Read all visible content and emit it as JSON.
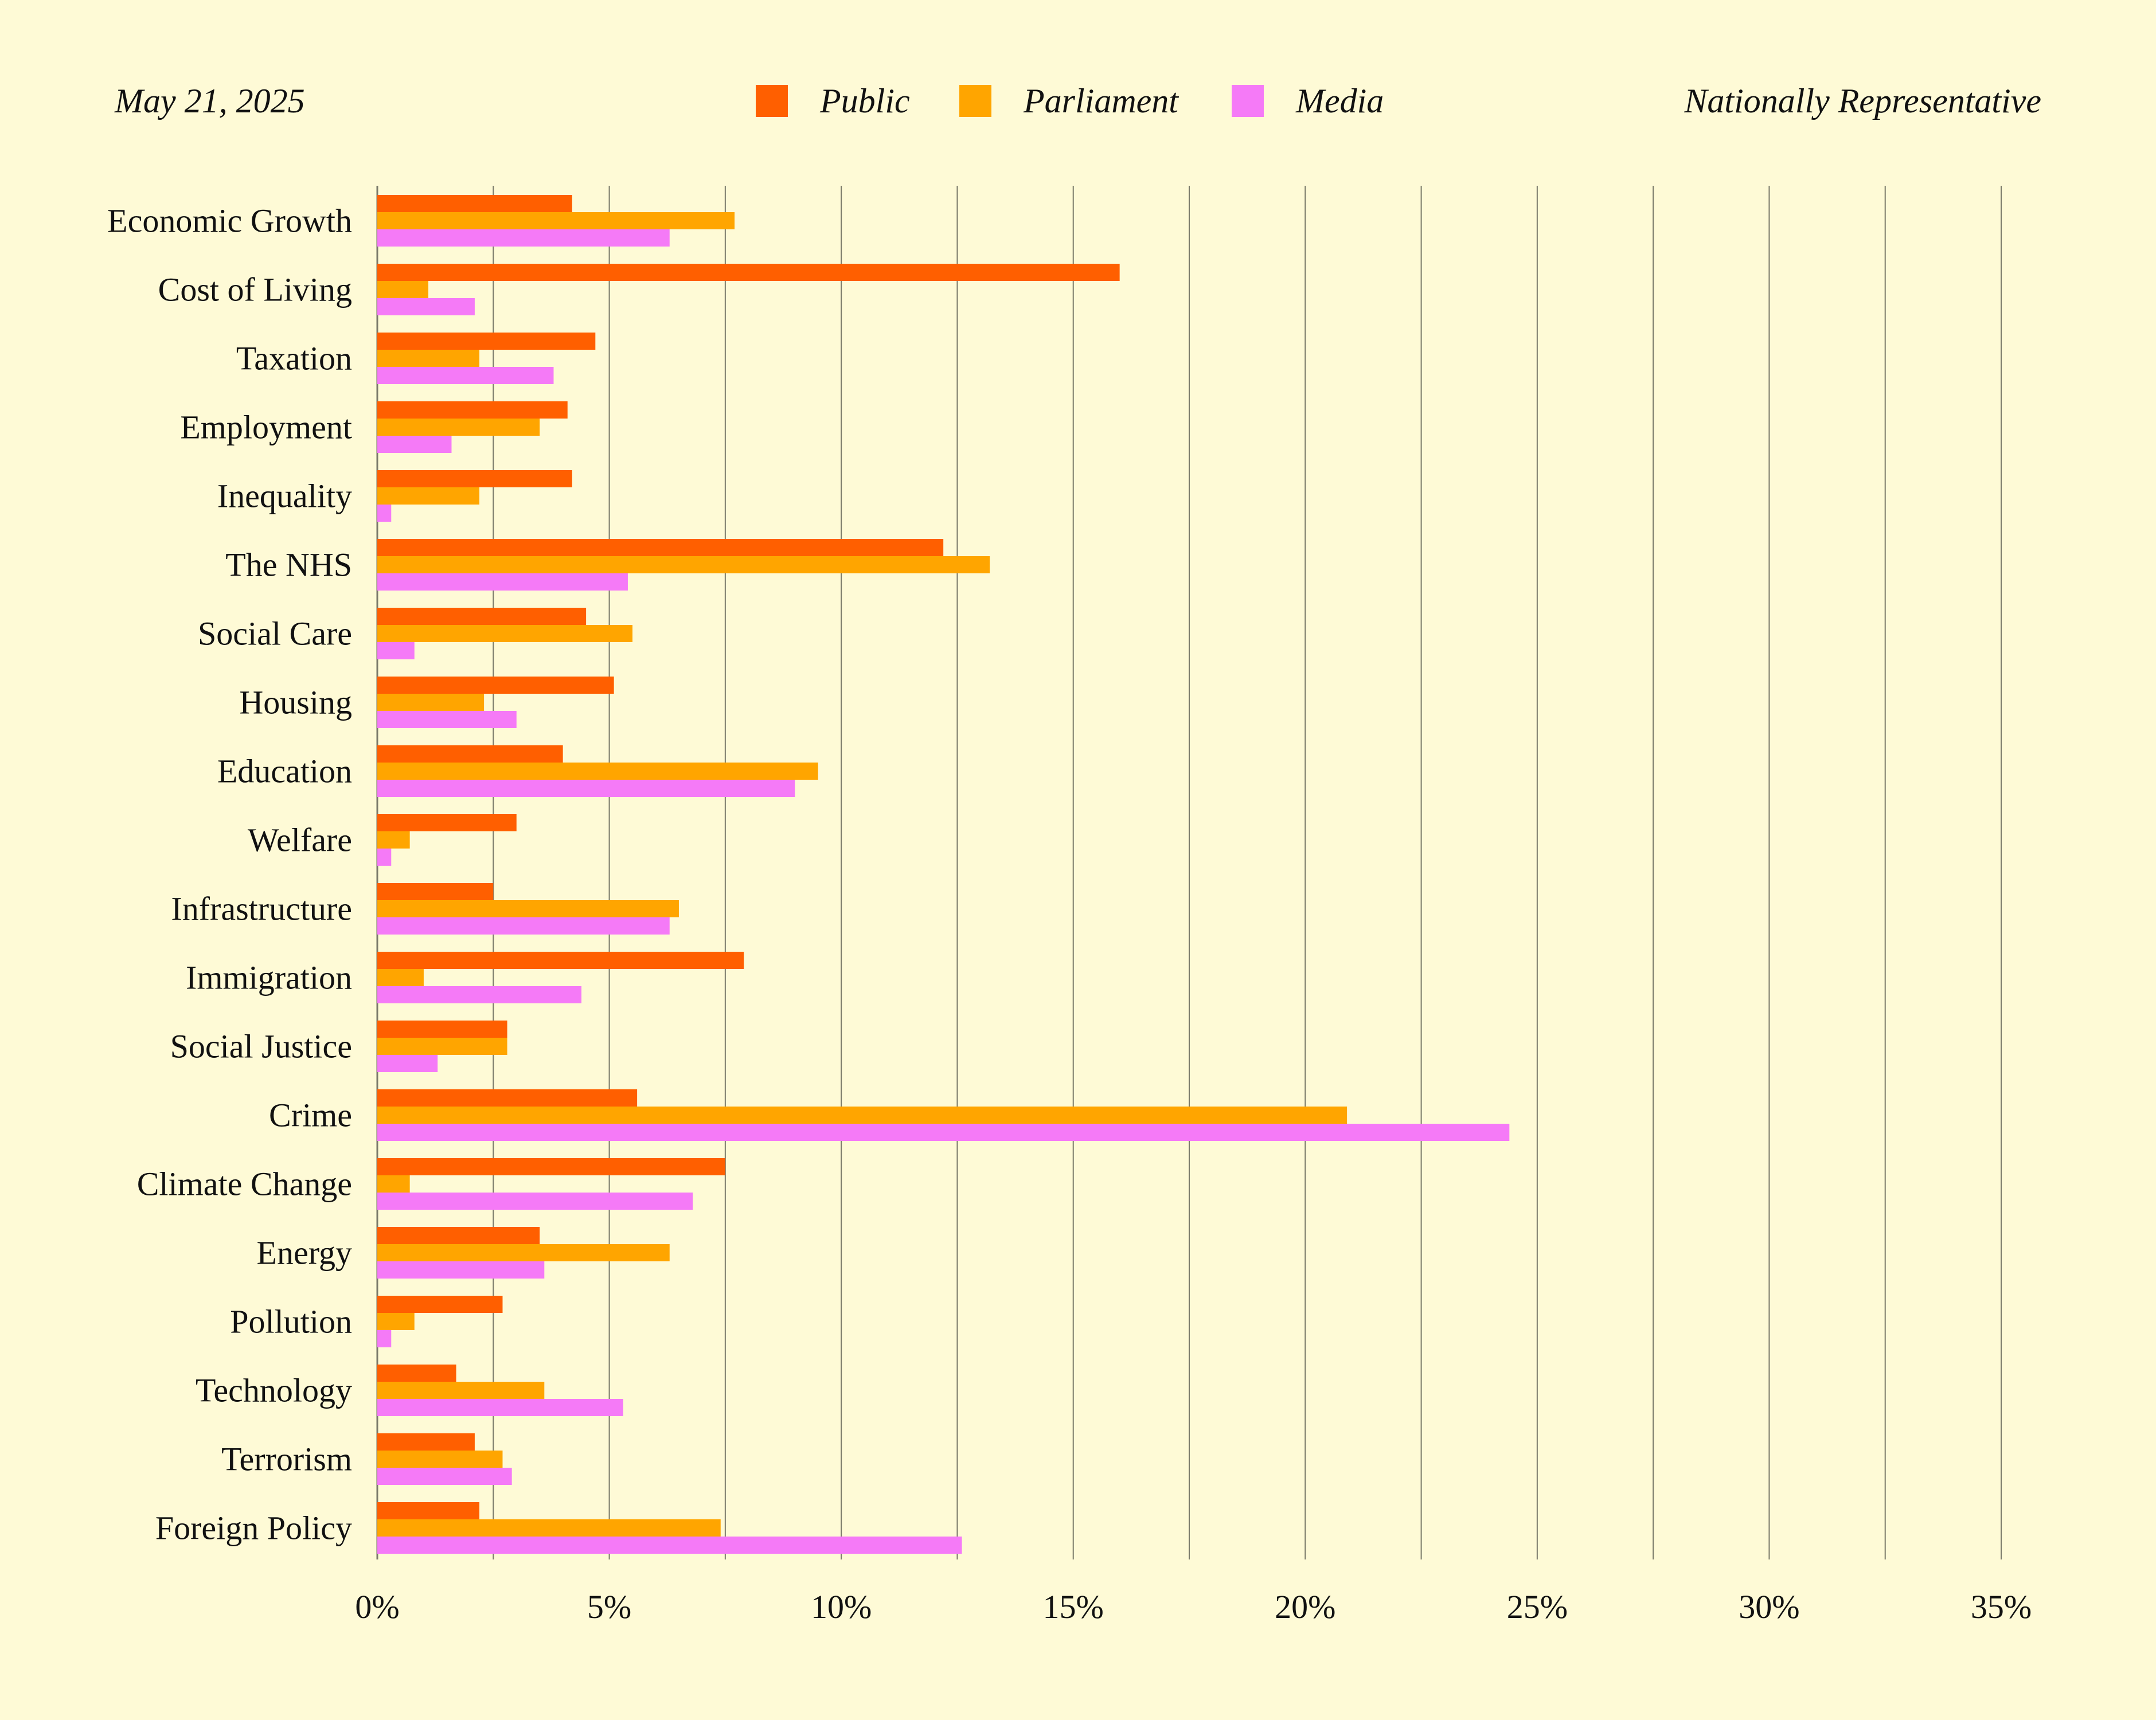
{
  "header": {
    "date": "May 21, 2025",
    "sample": "Nationally Representative"
  },
  "colors": {
    "background": "#FEFAD6",
    "public": "#FF5F00",
    "parliament": "#FFA500",
    "media": "#F57AF7",
    "grid": "#7A7A6A"
  },
  "chart_data": {
    "type": "bar",
    "orientation": "horizontal",
    "grid": true,
    "legend_position": "top-center",
    "xlim": [
      0,
      36
    ],
    "x_ticks": [
      0,
      5,
      10,
      15,
      20,
      25,
      30,
      35
    ],
    "x_tick_labels": [
      "0%",
      "5%",
      "10%",
      "15%",
      "20%",
      "25%",
      "30%",
      "35%"
    ],
    "categories": [
      "Economic Growth",
      "Cost of Living",
      "Taxation",
      "Employment",
      "Inequality",
      "The NHS",
      "Social Care",
      "Housing",
      "Education",
      "Welfare",
      "Infrastructure",
      "Immigration",
      "Social Justice",
      "Crime",
      "Climate Change",
      "Energy",
      "Pollution",
      "Technology",
      "Terrorism",
      "Foreign Policy"
    ],
    "series": [
      {
        "name": "Public",
        "color": "#FF5F00",
        "values": [
          4.2,
          16.0,
          4.7,
          4.1,
          4.2,
          12.2,
          4.5,
          5.1,
          4.0,
          3.0,
          2.5,
          7.9,
          2.8,
          5.6,
          7.5,
          3.5,
          2.7,
          1.7,
          2.1,
          2.2
        ]
      },
      {
        "name": "Parliament",
        "color": "#FFA500",
        "values": [
          7.7,
          1.1,
          2.2,
          3.5,
          2.2,
          13.2,
          5.5,
          2.3,
          9.5,
          0.7,
          6.5,
          1.0,
          2.8,
          20.9,
          0.7,
          6.3,
          0.8,
          3.6,
          2.7,
          7.4
        ]
      },
      {
        "name": "Media",
        "color": "#F57AF7",
        "values": [
          6.3,
          2.1,
          3.8,
          1.6,
          0.3,
          5.4,
          0.8,
          3.0,
          9.0,
          0.3,
          6.3,
          4.4,
          1.3,
          24.4,
          6.8,
          3.6,
          0.3,
          5.3,
          2.9,
          12.6
        ]
      }
    ]
  }
}
